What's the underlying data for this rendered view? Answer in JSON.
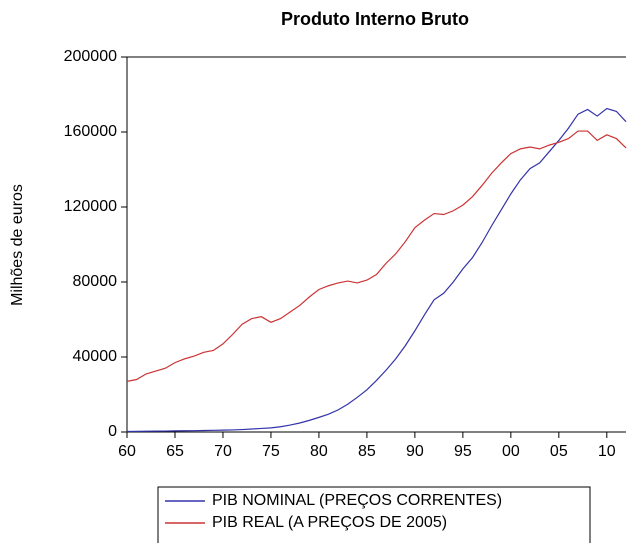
{
  "chart_data": {
    "type": "line",
    "title": "Produto Interno Bruto",
    "y_label": "Milhões de euros",
    "x": [
      1960,
      1961,
      1962,
      1963,
      1964,
      1965,
      1966,
      1967,
      1968,
      1969,
      1970,
      1971,
      1972,
      1973,
      1974,
      1975,
      1976,
      1977,
      1978,
      1979,
      1980,
      1981,
      1982,
      1983,
      1984,
      1985,
      1986,
      1987,
      1988,
      1989,
      1990,
      1991,
      1992,
      1993,
      1994,
      1995,
      1996,
      1997,
      1998,
      1999,
      2000,
      2001,
      2002,
      2003,
      2004,
      2005,
      2006,
      2007,
      2008,
      2009,
      2010,
      2011,
      2012
    ],
    "xlim": [
      1960,
      2012
    ],
    "xticks": [
      {
        "value": 1960,
        "label": "60"
      },
      {
        "value": 1965,
        "label": "65"
      },
      {
        "value": 1970,
        "label": "70"
      },
      {
        "value": 1975,
        "label": "75"
      },
      {
        "value": 1980,
        "label": "80"
      },
      {
        "value": 1985,
        "label": "85"
      },
      {
        "value": 1990,
        "label": "90"
      },
      {
        "value": 1995,
        "label": "95"
      },
      {
        "value": 2000,
        "label": "00"
      },
      {
        "value": 2005,
        "label": "05"
      },
      {
        "value": 2010,
        "label": "10"
      }
    ],
    "ylim": [
      0,
      200000
    ],
    "yticks": [
      0,
      40000,
      80000,
      120000,
      160000,
      200000
    ],
    "grid": false,
    "legend": "bottom",
    "series": [
      {
        "name": "PIB NOMINAL (PREÇOS CORRENTES)",
        "color": "#3333aa",
        "values": [
          300,
          350,
          400,
          450,
          500,
          600,
          650,
          700,
          800,
          900,
          1000,
          1100,
          1300,
          1600,
          1900,
          2200,
          2800,
          3700,
          4800,
          6200,
          7800,
          9500,
          11800,
          14800,
          18500,
          22500,
          27500,
          33000,
          39000,
          46000,
          54000,
          62500,
          70500,
          74000,
          80000,
          87000,
          93000,
          101000,
          110000,
          118500,
          127000,
          134500,
          140500,
          143500,
          149500,
          155500,
          162000,
          169500,
          172000,
          168500,
          172500,
          171000,
          165500
        ]
      },
      {
        "name": "PIB REAL  (A PREÇOS DE 2005)",
        "color": "#cc3333",
        "values": [
          27000,
          28000,
          31000,
          32500,
          34000,
          37000,
          39000,
          40500,
          42500,
          43500,
          47000,
          52000,
          57500,
          60500,
          61500,
          58500,
          60500,
          64000,
          67500,
          72000,
          76000,
          78000,
          79500,
          80500,
          79500,
          81000,
          84000,
          90000,
          95000,
          101500,
          109000,
          113000,
          116500,
          116000,
          118000,
          121000,
          125500,
          131500,
          138000,
          143500,
          148500,
          151000,
          152000,
          151000,
          153000,
          154500,
          156500,
          160500,
          160500,
          155500,
          158500,
          156500,
          151500
        ]
      }
    ]
  }
}
